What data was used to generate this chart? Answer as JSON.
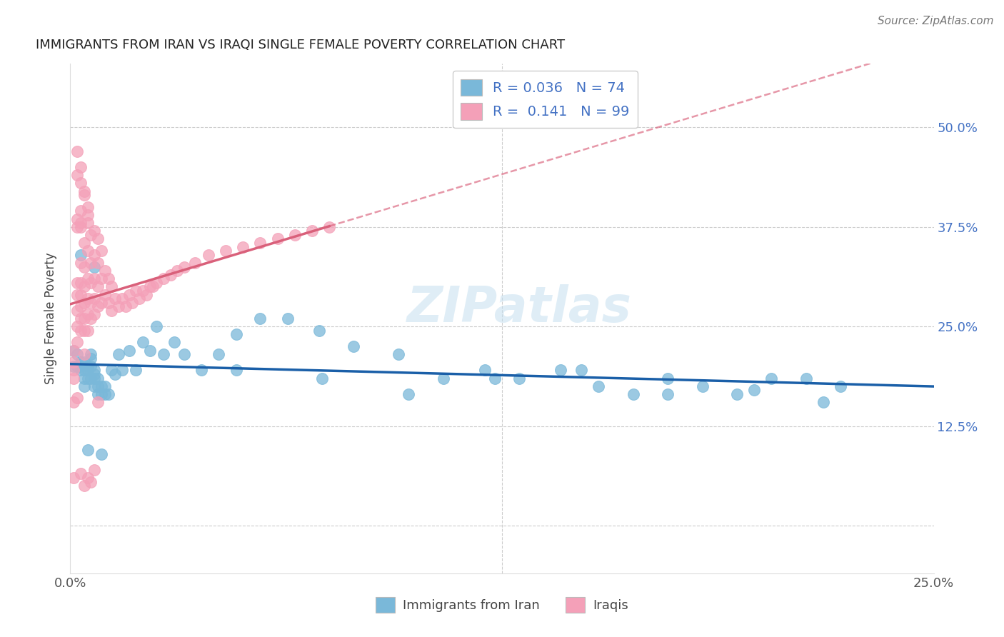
{
  "title": "IMMIGRANTS FROM IRAN VS IRAQI SINGLE FEMALE POVERTY CORRELATION CHART",
  "source": "Source: ZipAtlas.com",
  "ylabel": "Single Female Poverty",
  "xlabel_iran": "Immigrants from Iran",
  "xlabel_iraqi": "Iraqis",
  "xlim": [
    0.0,
    0.25
  ],
  "ylim": [
    -0.06,
    0.58
  ],
  "ytick_positions": [
    0.0,
    0.125,
    0.25,
    0.375,
    0.5
  ],
  "ytick_labels": [
    "",
    "12.5%",
    "25.0%",
    "37.5%",
    "50.0%"
  ],
  "xtick_positions": [
    0.0,
    0.05,
    0.1,
    0.15,
    0.2,
    0.25
  ],
  "xtick_labels": [
    "0.0%",
    "",
    "",
    "",
    "",
    "25.0%"
  ],
  "R_iran": 0.036,
  "N_iran": 74,
  "R_iraqi": 0.141,
  "N_iraqi": 99,
  "color_iran": "#7ab8d9",
  "color_iraqi": "#f4a0b8",
  "line_color_iran": "#1a5fa8",
  "line_color_iraqi": "#d9607a",
  "watermark": "ZIPatlas",
  "iran_x": [
    0.001,
    0.001,
    0.002,
    0.002,
    0.003,
    0.003,
    0.003,
    0.004,
    0.004,
    0.004,
    0.004,
    0.005,
    0.005,
    0.005,
    0.006,
    0.006,
    0.006,
    0.006,
    0.007,
    0.007,
    0.007,
    0.007,
    0.008,
    0.008,
    0.008,
    0.009,
    0.009,
    0.01,
    0.01,
    0.011,
    0.012,
    0.013,
    0.014,
    0.015,
    0.017,
    0.019,
    0.021,
    0.023,
    0.025,
    0.027,
    0.03,
    0.033,
    0.038,
    0.043,
    0.048,
    0.055,
    0.063,
    0.072,
    0.082,
    0.095,
    0.108,
    0.12,
    0.13,
    0.142,
    0.153,
    0.163,
    0.173,
    0.183,
    0.193,
    0.203,
    0.213,
    0.223,
    0.048,
    0.073,
    0.098,
    0.123,
    0.148,
    0.173,
    0.198,
    0.218,
    0.007,
    0.009,
    0.003,
    0.005
  ],
  "iran_y": [
    0.2,
    0.22,
    0.215,
    0.2,
    0.205,
    0.2,
    0.195,
    0.205,
    0.195,
    0.185,
    0.175,
    0.2,
    0.195,
    0.185,
    0.215,
    0.21,
    0.2,
    0.185,
    0.195,
    0.185,
    0.19,
    0.175,
    0.185,
    0.175,
    0.165,
    0.175,
    0.165,
    0.175,
    0.165,
    0.165,
    0.195,
    0.19,
    0.215,
    0.195,
    0.22,
    0.195,
    0.23,
    0.22,
    0.25,
    0.215,
    0.23,
    0.215,
    0.195,
    0.215,
    0.24,
    0.26,
    0.26,
    0.245,
    0.225,
    0.215,
    0.185,
    0.195,
    0.185,
    0.195,
    0.175,
    0.165,
    0.185,
    0.175,
    0.165,
    0.185,
    0.185,
    0.175,
    0.195,
    0.185,
    0.165,
    0.185,
    0.195,
    0.165,
    0.17,
    0.155,
    0.325,
    0.09,
    0.34,
    0.095
  ],
  "iraqi_x": [
    0.001,
    0.001,
    0.001,
    0.001,
    0.002,
    0.002,
    0.002,
    0.002,
    0.002,
    0.003,
    0.003,
    0.003,
    0.003,
    0.003,
    0.003,
    0.004,
    0.004,
    0.004,
    0.004,
    0.004,
    0.004,
    0.005,
    0.005,
    0.005,
    0.005,
    0.005,
    0.005,
    0.006,
    0.006,
    0.006,
    0.006,
    0.006,
    0.007,
    0.007,
    0.007,
    0.007,
    0.007,
    0.008,
    0.008,
    0.008,
    0.008,
    0.009,
    0.009,
    0.009,
    0.01,
    0.01,
    0.011,
    0.011,
    0.012,
    0.012,
    0.013,
    0.014,
    0.015,
    0.016,
    0.017,
    0.018,
    0.019,
    0.02,
    0.021,
    0.022,
    0.023,
    0.024,
    0.025,
    0.027,
    0.029,
    0.031,
    0.033,
    0.036,
    0.04,
    0.045,
    0.05,
    0.055,
    0.06,
    0.065,
    0.07,
    0.075,
    0.002,
    0.002,
    0.003,
    0.003,
    0.004,
    0.004,
    0.005,
    0.005,
    0.001,
    0.001,
    0.002,
    0.003,
    0.004,
    0.005,
    0.006,
    0.007,
    0.008,
    0.003,
    0.003,
    0.004,
    0.002,
    0.002,
    0.003
  ],
  "iraqi_y": [
    0.205,
    0.195,
    0.22,
    0.185,
    0.25,
    0.29,
    0.305,
    0.27,
    0.23,
    0.29,
    0.33,
    0.305,
    0.275,
    0.26,
    0.245,
    0.355,
    0.325,
    0.3,
    0.28,
    0.26,
    0.245,
    0.38,
    0.345,
    0.31,
    0.285,
    0.265,
    0.245,
    0.365,
    0.33,
    0.305,
    0.28,
    0.26,
    0.37,
    0.34,
    0.31,
    0.285,
    0.265,
    0.36,
    0.33,
    0.3,
    0.275,
    0.345,
    0.31,
    0.28,
    0.32,
    0.29,
    0.31,
    0.28,
    0.3,
    0.27,
    0.285,
    0.275,
    0.285,
    0.275,
    0.29,
    0.28,
    0.295,
    0.285,
    0.295,
    0.29,
    0.3,
    0.3,
    0.305,
    0.31,
    0.315,
    0.32,
    0.325,
    0.33,
    0.34,
    0.345,
    0.35,
    0.355,
    0.36,
    0.365,
    0.37,
    0.375,
    0.47,
    0.44,
    0.45,
    0.43,
    0.42,
    0.415,
    0.4,
    0.39,
    0.155,
    0.06,
    0.16,
    0.065,
    0.05,
    0.06,
    0.055,
    0.07,
    0.155,
    0.395,
    0.38,
    0.215,
    0.375,
    0.385,
    0.375
  ]
}
